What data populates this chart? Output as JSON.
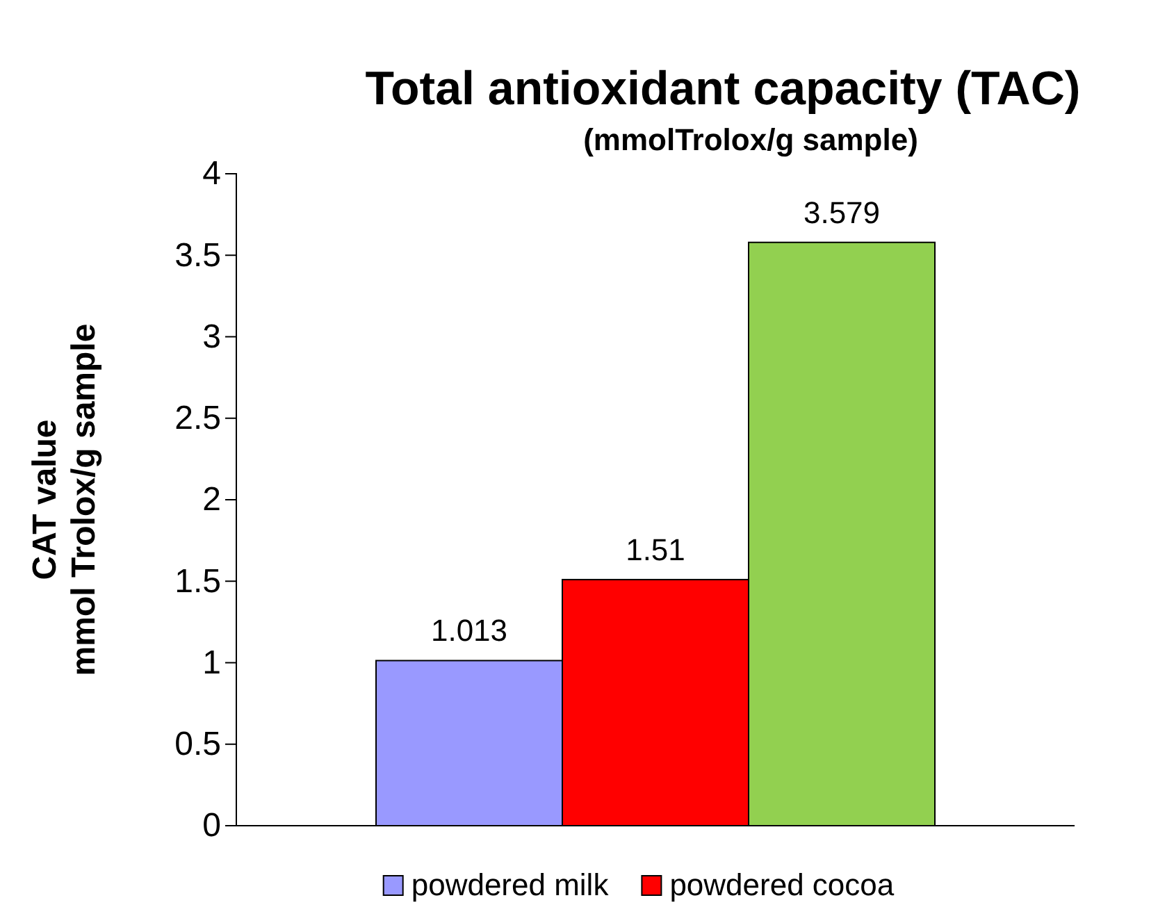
{
  "chart_data": {
    "type": "bar",
    "title": "Total antioxidant capacity (TAC)",
    "subtitle": "(mmolTrolox/g sample)",
    "ylabel": "CAT value\nmmol Trolox/g sample",
    "categories": [
      null
    ],
    "series": [
      {
        "name": "powdered milk",
        "color": "#9999ff",
        "values": [
          1.013
        ]
      },
      {
        "name": "powdered cocoa",
        "color": "#ff0000",
        "values": [
          1.51
        ]
      },
      {
        "color": "#92d050",
        "values": [
          3.579
        ]
      }
    ],
    "ylim": [
      0,
      4
    ],
    "yticks": [
      0,
      0.5,
      1,
      1.5,
      2,
      2.5,
      3,
      3.5,
      4
    ],
    "data_labels": true,
    "legend": "bottom",
    "grid": false
  }
}
